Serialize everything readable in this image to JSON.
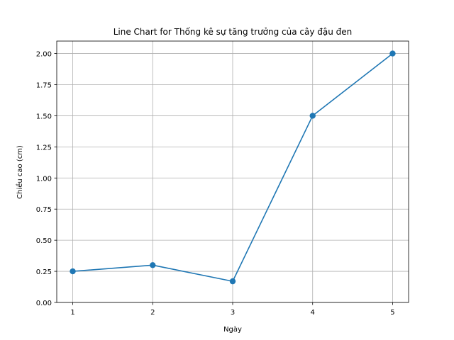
{
  "chart_data": {
    "type": "line",
    "title": "Line Chart for Thống kê sự tăng trưởng của cây đậu đen",
    "xlabel": "Ngày",
    "ylabel": "Chiều cao (cm)",
    "x": [
      1,
      2,
      3,
      4,
      5
    ],
    "series": [
      {
        "values": [
          0.25,
          0.3,
          0.17,
          1.5,
          2.0
        ]
      }
    ],
    "x_ticks": [
      "1",
      "2",
      "3",
      "4",
      "5"
    ],
    "y_ticks": [
      "0.00",
      "0.25",
      "0.50",
      "0.75",
      "1.00",
      "1.25",
      "1.50",
      "1.75",
      "2.00"
    ],
    "xlim": [
      0.8,
      5.2
    ],
    "ylim": [
      0.0,
      2.1
    ],
    "grid": true,
    "line_color": "#1f77b4",
    "marker": "circle"
  }
}
